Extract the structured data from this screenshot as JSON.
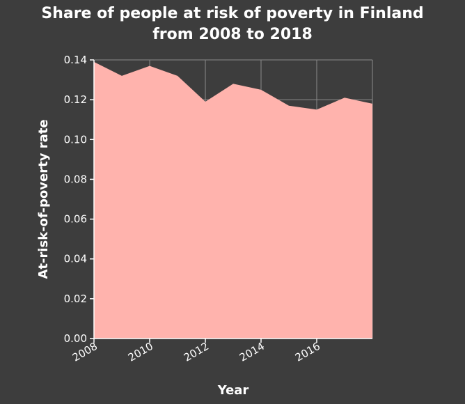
{
  "chart_data": {
    "type": "area",
    "title_lines": [
      "Share of people at risk of poverty in Finland",
      "from 2008 to 2018"
    ],
    "xlabel": "Year",
    "ylabel": "At-risk-of-poverty rate",
    "x": [
      2008,
      2009,
      2010,
      2011,
      2012,
      2013,
      2014,
      2015,
      2016,
      2017,
      2018
    ],
    "values": [
      0.139,
      0.132,
      0.137,
      0.132,
      0.119,
      0.128,
      0.125,
      0.117,
      0.115,
      0.121,
      0.118
    ],
    "xlim": [
      2008,
      2018
    ],
    "ylim": [
      0,
      0.14
    ],
    "x_ticks": [
      "2008",
      "2010",
      "2012",
      "2014",
      "2016"
    ],
    "y_ticks": [
      "0.00",
      "0.02",
      "0.04",
      "0.06",
      "0.08",
      "0.10",
      "0.12",
      "0.14"
    ],
    "grid": true,
    "fill_color": "#ffb3ad",
    "background_color": "#3d3d3d"
  }
}
